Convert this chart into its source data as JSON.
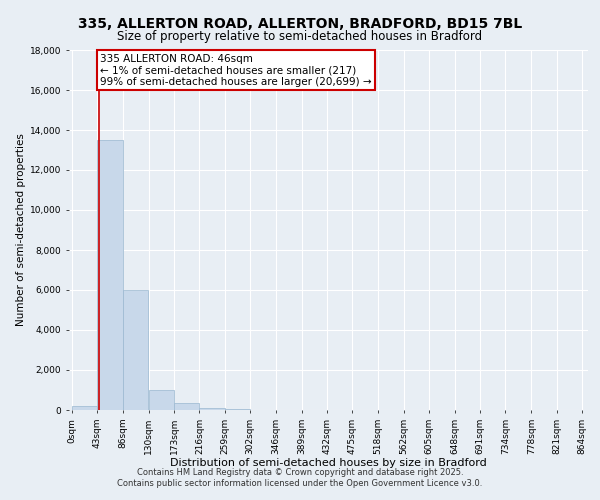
{
  "title": "335, ALLERTON ROAD, ALLERTON, BRADFORD, BD15 7BL",
  "subtitle": "Size of property relative to semi-detached houses in Bradford",
  "xlabel": "Distribution of semi-detached houses by size in Bradford",
  "ylabel": "Number of semi-detached properties",
  "footer_line1": "Contains HM Land Registry data © Crown copyright and database right 2025.",
  "footer_line2": "Contains public sector information licensed under the Open Government Licence v3.0.",
  "bin_edges": [
    0,
    43,
    86,
    130,
    173,
    216,
    259,
    302,
    346,
    389,
    432,
    475,
    518,
    562,
    605,
    648,
    691,
    734,
    778,
    821,
    864
  ],
  "bin_counts": [
    200,
    13500,
    6000,
    1000,
    350,
    100,
    50,
    10,
    5,
    3,
    2,
    1,
    1,
    0,
    0,
    0,
    0,
    0,
    0,
    0
  ],
  "bar_color": "#c8d8ea",
  "bar_edge_color": "#9ab8d0",
  "property_size": 46,
  "property_label": "335 ALLERTON ROAD: 46sqm",
  "annotation_line1": "← 1% of semi-detached houses are smaller (217)",
  "annotation_line2": "99% of semi-detached houses are larger (20,699) →",
  "annotation_box_color": "#ffffff",
  "annotation_box_edge": "#cc0000",
  "vline_color": "#cc0000",
  "ylim": [
    0,
    18000
  ],
  "yticks": [
    0,
    2000,
    4000,
    6000,
    8000,
    10000,
    12000,
    14000,
    16000,
    18000
  ],
  "background_color": "#e8eef4",
  "grid_color": "#ffffff",
  "title_fontsize": 10,
  "subtitle_fontsize": 8.5,
  "xlabel_fontsize": 8,
  "ylabel_fontsize": 7.5,
  "tick_fontsize": 6.5,
  "footer_fontsize": 6,
  "annotation_fontsize": 7.5
}
